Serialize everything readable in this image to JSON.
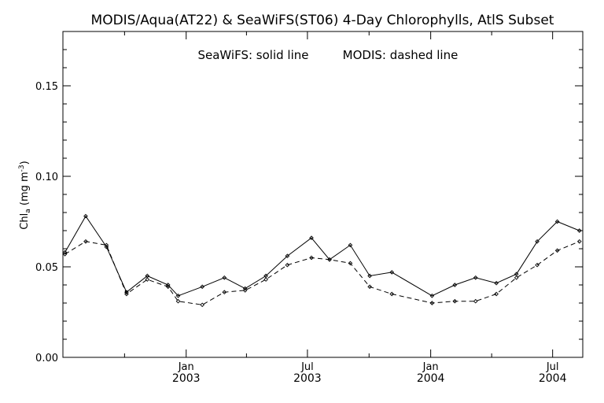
{
  "chart_data": {
    "type": "line",
    "title": "MODIS/Aqua(AT22) & SeaWiFS(ST06) 4-Day Chlorophylls, AtlS Subset",
    "annotation_left": "SeaWiFS: solid line",
    "annotation_right": "MODIS: dashed line",
    "ylabel": "Chl",
    "ylabel_sub": "a",
    "ylabel_units_open": " (mg m",
    "ylabel_units_sup": "-3",
    "ylabel_units_close": ")",
    "ylim": [
      0.0,
      0.18
    ],
    "y_ticks": [
      {
        "value": 0.0,
        "label": "0.00"
      },
      {
        "value": 0.05,
        "label": "0.05"
      },
      {
        "value": 0.1,
        "label": "0.10"
      },
      {
        "value": 0.15,
        "label": "0.15"
      }
    ],
    "y_minor_step": 0.01,
    "xlim": [
      "2002-07-01",
      "2004-08-15"
    ],
    "x_minor_ticks": [
      "2002-10-01",
      "2003-04-01",
      "2003-10-01",
      "2004-04-01"
    ],
    "x_ticks": [
      {
        "date": "2003-01-01",
        "month": "Jan",
        "year": "2003"
      },
      {
        "date": "2003-07-01",
        "month": "Jul",
        "year": "2003"
      },
      {
        "date": "2004-01-01",
        "month": "Jan",
        "year": "2004"
      },
      {
        "date": "2004-07-01",
        "month": "Jul",
        "year": "2004"
      }
    ],
    "grid": false,
    "series": [
      {
        "name": "SeaWiFS",
        "style": "solid",
        "points": [
          [
            "2002-07-04",
            0.058
          ],
          [
            "2002-08-04",
            0.078
          ],
          [
            "2002-09-04",
            0.061
          ],
          [
            "2002-10-04",
            0.036
          ],
          [
            "2002-11-04",
            0.045
          ],
          [
            "2002-12-05",
            0.04
          ],
          [
            "2002-12-20",
            0.034
          ],
          [
            "2003-01-25",
            0.039
          ],
          [
            "2003-02-27",
            0.044
          ],
          [
            "2003-03-30",
            0.038
          ],
          [
            "2003-04-30",
            0.045
          ],
          [
            "2003-06-01",
            0.056
          ],
          [
            "2003-07-07",
            0.066
          ],
          [
            "2003-08-03",
            0.054
          ],
          [
            "2003-09-03",
            0.062
          ],
          [
            "2003-10-02",
            0.045
          ],
          [
            "2003-11-04",
            0.047
          ],
          [
            "2004-01-03",
            0.034
          ],
          [
            "2004-02-06",
            0.04
          ],
          [
            "2004-03-08",
            0.044
          ],
          [
            "2004-04-08",
            0.041
          ],
          [
            "2004-05-08",
            0.046
          ],
          [
            "2004-06-08",
            0.064
          ],
          [
            "2004-07-08",
            0.075
          ],
          [
            "2004-08-10",
            0.07
          ]
        ]
      },
      {
        "name": "MODIS",
        "style": "dashed",
        "points": [
          [
            "2002-07-04",
            0.057
          ],
          [
            "2002-08-04",
            0.064
          ],
          [
            "2002-09-04",
            0.062
          ],
          [
            "2002-10-04",
            0.035
          ],
          [
            "2002-11-04",
            0.043
          ],
          [
            "2002-12-05",
            0.039
          ],
          [
            "2002-12-20",
            0.031
          ],
          [
            "2003-01-25",
            0.029
          ],
          [
            "2003-02-27",
            0.036
          ],
          [
            "2003-03-30",
            0.037
          ],
          [
            "2003-04-30",
            0.043
          ],
          [
            "2003-06-01",
            0.051
          ],
          [
            "2003-07-07",
            0.055
          ],
          [
            "2003-08-03",
            0.054
          ],
          [
            "2003-09-03",
            0.052
          ],
          [
            "2003-10-02",
            0.039
          ],
          [
            "2003-11-04",
            0.035
          ],
          [
            "2004-01-03",
            0.03
          ],
          [
            "2004-02-06",
            0.031
          ],
          [
            "2004-03-08",
            0.031
          ],
          [
            "2004-04-08",
            0.035
          ],
          [
            "2004-05-08",
            0.044
          ],
          [
            "2004-06-08",
            0.051
          ],
          [
            "2004-07-08",
            0.059
          ],
          [
            "2004-08-10",
            0.064
          ]
        ]
      }
    ]
  }
}
